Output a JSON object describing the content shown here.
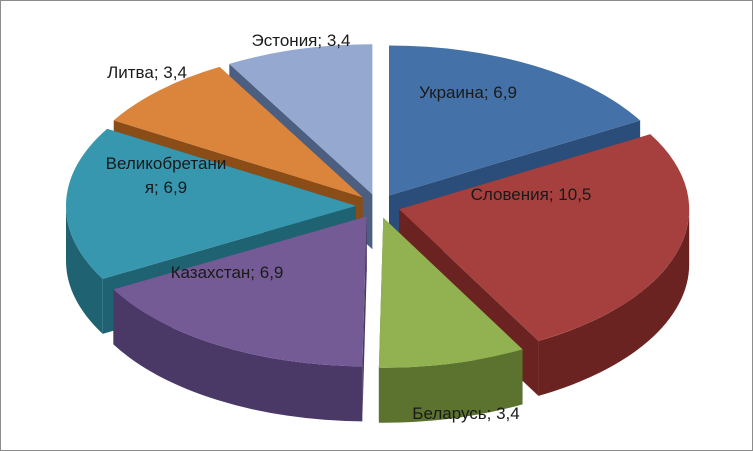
{
  "chart_data": {
    "type": "pie",
    "title": "",
    "style": "3d-exploded",
    "legend": "none",
    "slices": [
      {
        "label": "Украина",
        "value": 6.9,
        "label_text": "Украина; 6,9",
        "color": "#4472a8",
        "side": "#2a4d7a"
      },
      {
        "label": "Словения",
        "value": 10.5,
        "label_text": "Словения; 10,5",
        "color": "#a5403e",
        "side": "#6b2322"
      },
      {
        "label": "Беларусь",
        "value": 3.4,
        "label_text": "Беларусь; 3,4",
        "color": "#92b251",
        "side": "#5c7330"
      },
      {
        "label": "Казахстан",
        "value": 6.9,
        "label_text": "Казахстан; 6,9",
        "color": "#745b96",
        "side": "#4a3966"
      },
      {
        "label": "Великобритания",
        "value": 6.9,
        "label_text": [
          "Великобретани",
          "я; 6,9"
        ],
        "color": "#3797ae",
        "side": "#1f6272"
      },
      {
        "label": "Литва",
        "value": 3.4,
        "label_text": "Литва; 3,4",
        "color": "#db843c",
        "side": "#8a4d18"
      },
      {
        "label": "Эстония",
        "value": 3.4,
        "label_text": "Эстония; 3,4",
        "color": "#94a8d0",
        "side": "#4d5f80"
      }
    ]
  }
}
